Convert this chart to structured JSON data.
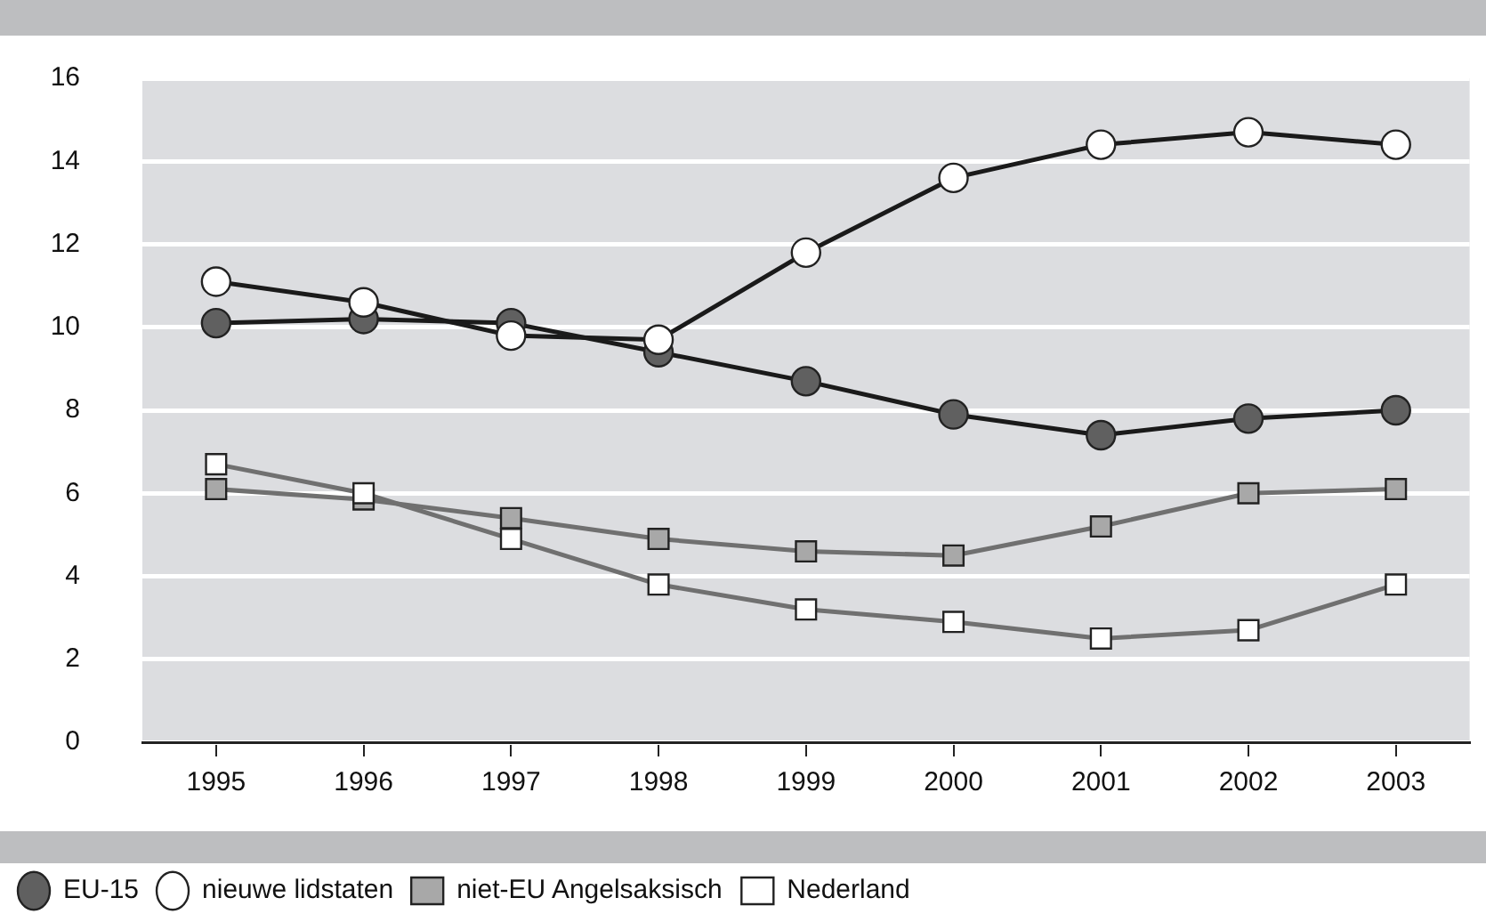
{
  "chart_data": {
    "type": "line",
    "categories": [
      "1995",
      "1996",
      "1997",
      "1998",
      "1999",
      "2000",
      "2001",
      "2002",
      "2003"
    ],
    "series": [
      {
        "name": "EU-15",
        "color": "#1a1a1a",
        "marker": "circle",
        "colors": [
          "#606060",
          "#606060",
          "#606060",
          "#606060",
          "#606060",
          "#606060",
          "#606060",
          "#606060",
          "#606060"
        ],
        "values": [
          10.1,
          10.2,
          10.1,
          9.4,
          8.7,
          7.9,
          7.4,
          7.8,
          8.0
        ]
      },
      {
        "name": "nieuwe lidstaten",
        "color": "#1a1a1a",
        "marker": "circle",
        "colors": [
          "#ffffff",
          "#ffffff",
          "#ffffff",
          "#ffffff",
          "#ffffff",
          "#ffffff",
          "#ffffff",
          "#ffffff",
          "#ffffff"
        ],
        "values": [
          11.1,
          10.6,
          9.8,
          9.7,
          11.8,
          13.6,
          14.4,
          14.7,
          14.4
        ]
      },
      {
        "name": "niet-EU Angelsaksisch",
        "color": "#707070",
        "marker": "square",
        "colors": [
          "#a8a8a8",
          "#a8a8a8",
          "#a8a8a8",
          "#a8a8a8",
          "#a8a8a8",
          "#a8a8a8",
          "#a8a8a8",
          "#a8a8a8",
          "#a8a8a8"
        ],
        "values": [
          6.1,
          5.85,
          5.4,
          4.9,
          4.6,
          4.5,
          5.2,
          6.0,
          6.1
        ]
      },
      {
        "name": "Nederland",
        "color": "#707070",
        "marker": "square",
        "colors": [
          "#ffffff",
          "#ffffff",
          "#ffffff",
          "#ffffff",
          "#ffffff",
          "#ffffff",
          "#ffffff",
          "#ffffff",
          "#ffffff"
        ],
        "values": [
          6.7,
          6.0,
          4.9,
          3.8,
          3.2,
          2.9,
          2.5,
          2.7,
          3.8
        ]
      }
    ],
    "ylim": [
      0,
      16
    ],
    "yticks": [
      0,
      2,
      4,
      6,
      8,
      10,
      12,
      14,
      16
    ],
    "grid": "y",
    "legend": "bottom"
  }
}
